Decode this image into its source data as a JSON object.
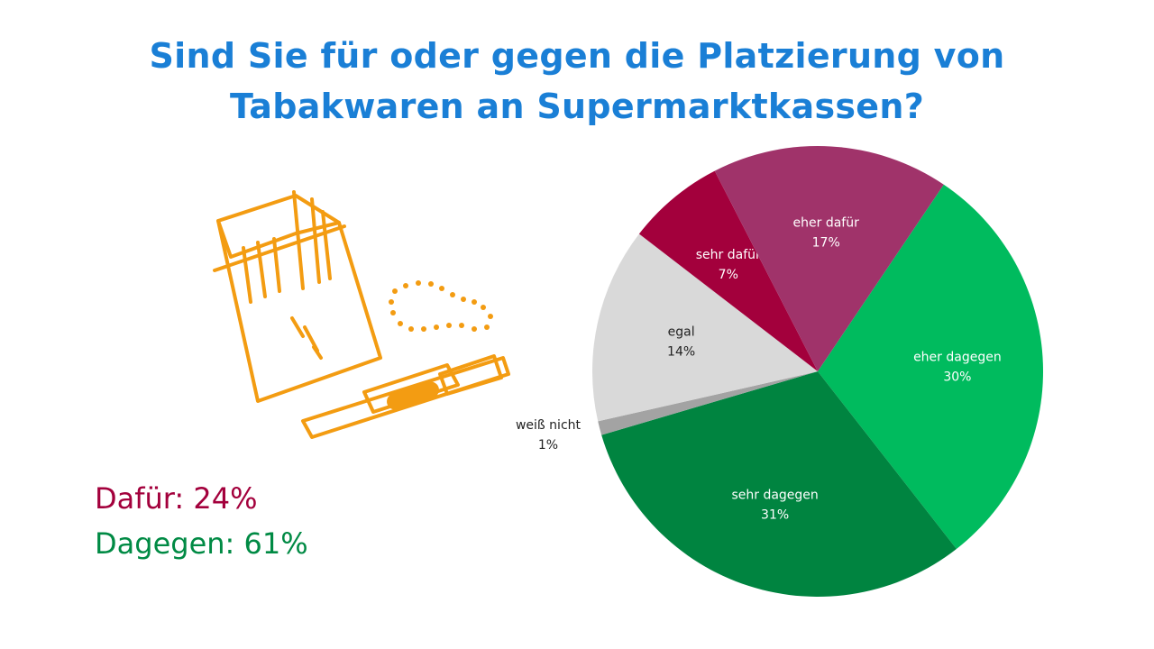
{
  "title": {
    "line1": "Sind Sie für oder gegen die Platzierung von",
    "line2": "Tabakwaren an Supermarktkassen?"
  },
  "summary": {
    "dafuer": "Dafür: 24%",
    "dagegen": "Dagegen: 61%"
  },
  "chart_data": {
    "type": "pie",
    "title": "Sind Sie für oder gegen die Platzierung von Tabakwaren an Supermarktkassen?",
    "slices": [
      {
        "label": "eher dagegen",
        "value": 30,
        "value_label": "30%",
        "color": "#00bb5e",
        "text_color": "#ffffff"
      },
      {
        "label": "sehr dagegen",
        "value": 31,
        "value_label": "31%",
        "color": "#008440",
        "text_color": "#ffffff"
      },
      {
        "label": "weiß nicht",
        "value": 1,
        "value_label": "1%",
        "color": "#a3a3a3",
        "text_color": "#222222"
      },
      {
        "label": "egal",
        "value": 14,
        "value_label": "14%",
        "color": "#d9d9d9",
        "text_color": "#222222"
      },
      {
        "label": "sehr dafür",
        "value": 7,
        "value_label": "7%",
        "color": "#a3003c",
        "text_color": "#ffffff"
      },
      {
        "label": "eher dafür",
        "value": 17,
        "value_label": "17%",
        "color": "#a0336a",
        "text_color": "#ffffff"
      }
    ]
  },
  "colors": {
    "title": "#1a7fd6",
    "illustration": "#f39c12",
    "dafuer": "#a3003c",
    "dagegen": "#008a44"
  },
  "illustration": {
    "icon": "cigarette-pack-and-heated-tobacco-icon"
  }
}
